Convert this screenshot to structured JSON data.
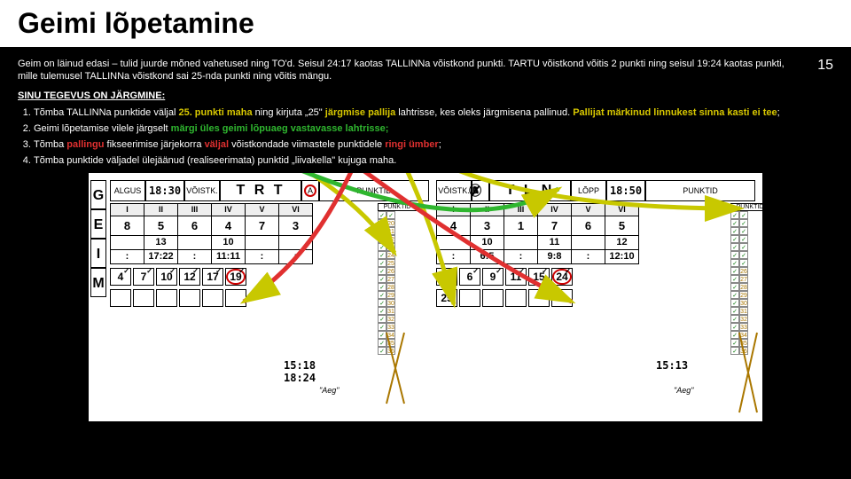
{
  "page": {
    "title": "Geimi lõpetamine",
    "number": "15"
  },
  "intro": "Geim on läinud edasi – tulid juurde mõned vahetused ning TO'd. Seisul 24:17 kaotas TALLINNa võistkond punkti. TARTU võistkond võitis 2 punkti ning seisul 19:24 kaotas punkti, mille tulemusel TALLINNa võistkond sai 25-nda punkti ning võitis mängu.",
  "subhead": "SINU TEGEVUS ON JÄRGMINE:",
  "steps": [
    {
      "pre": "Tõmba TALLINNa punktide väljal ",
      "hl1": "25. punkti maha",
      "mid": " ning kirjuta „25\" ",
      "hl2": "järgmise pallija",
      "mid2": " lahtrisse, kes oleks järgmisena pallinud. ",
      "hl3": "Pallijat märkinud linnukest sinna kasti ei tee",
      "post": ";"
    },
    {
      "pre": "Geimi lõpetamise vilele järgselt ",
      "hl1": "märgi üles geimi lõpuaeg vastavasse lahtrisse;",
      "post": ""
    },
    {
      "pre": "Tõmba ",
      "hl1": "pallingu",
      "mid": " fikseerimise järjekorra ",
      "hl2": "väljal",
      "mid2": " võistkondade viimastele punktidele ",
      "hl3": "ringi ümber",
      "post": ";"
    },
    {
      "pre": "Tõmba punktide väljadel ülejäänud (realiseerimata) punktid „liivakella\" kujuga maha.",
      "hl1": "",
      "post": ""
    }
  ],
  "sheet": {
    "left": {
      "algus": "ALGUS",
      "time": "18:30",
      "voistk": "VÕISTK.",
      "team": "T R T",
      "ab": "A",
      "headers": [
        "I",
        "II",
        "III",
        "IV",
        "V",
        "VI"
      ],
      "row1": [
        "8",
        "5",
        "6",
        "4",
        "7",
        "3"
      ],
      "row2": [
        "",
        "13",
        "",
        "10",
        "",
        ""
      ],
      "row3": [
        ":",
        "17:22",
        ":",
        "11:11",
        ":",
        ":"
      ],
      "serve": [
        "4",
        "7",
        "10",
        "12",
        "17",
        "19"
      ],
      "extra": "25",
      "time1": "15:18",
      "time2": "18:24"
    },
    "right": {
      "lopp": "LÕPP",
      "time": "18:50",
      "voistk": "VÕISTK.",
      "team": "T L N",
      "ab": "B",
      "headers": [
        "I",
        "II",
        "III",
        "IV",
        "V",
        "VI"
      ],
      "row1": [
        "4",
        "3",
        "1",
        "7",
        "6",
        "5"
      ],
      "row2": [
        "",
        "10",
        "",
        "11",
        "",
        "12"
      ],
      "row3": [
        ":",
        "6:5",
        ":",
        "9:8",
        ":",
        "12:10"
      ],
      "serve": [
        "5",
        "6",
        "9",
        "11",
        "15",
        "24"
      ],
      "time1": "15:13"
    }
  },
  "colors": {
    "yellow": "#d8c800",
    "green": "#2fb62f",
    "red": "#e03030",
    "arrow": "#c8c800"
  }
}
